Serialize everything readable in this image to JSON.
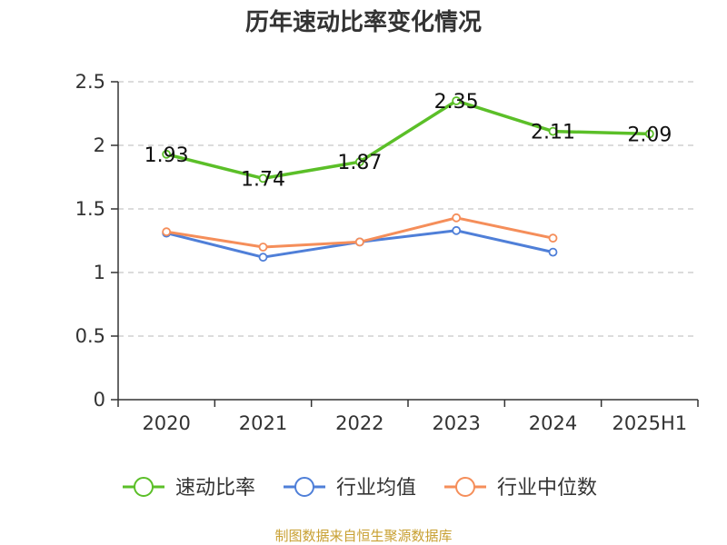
{
  "chart_data": {
    "type": "line",
    "title": "历年速动比率变化情况",
    "categories": [
      "2020",
      "2021",
      "2022",
      "2023",
      "2024",
      "2025H1"
    ],
    "ylim": [
      0,
      2.5
    ],
    "yticks": [
      "0",
      "0.5",
      "1",
      "1.5",
      "2",
      "2.5"
    ],
    "grid": true,
    "legend_position": "bottom",
    "series": [
      {
        "name": "速动比率",
        "color": "#5bbf28",
        "values": [
          1.93,
          1.74,
          1.87,
          2.35,
          2.11,
          2.09
        ],
        "labels": [
          "1.93",
          "1.74",
          "1.87",
          "2.35",
          "2.11",
          "2.09"
        ]
      },
      {
        "name": "行业均值",
        "color": "#4f7fd8",
        "values": [
          1.31,
          1.12,
          1.24,
          1.33,
          1.16,
          null
        ]
      },
      {
        "name": "行业中位数",
        "color": "#f58e5a",
        "values": [
          1.32,
          1.2,
          1.24,
          1.43,
          1.27,
          null
        ]
      }
    ]
  },
  "source": "制图数据来自恒生聚源数据库"
}
